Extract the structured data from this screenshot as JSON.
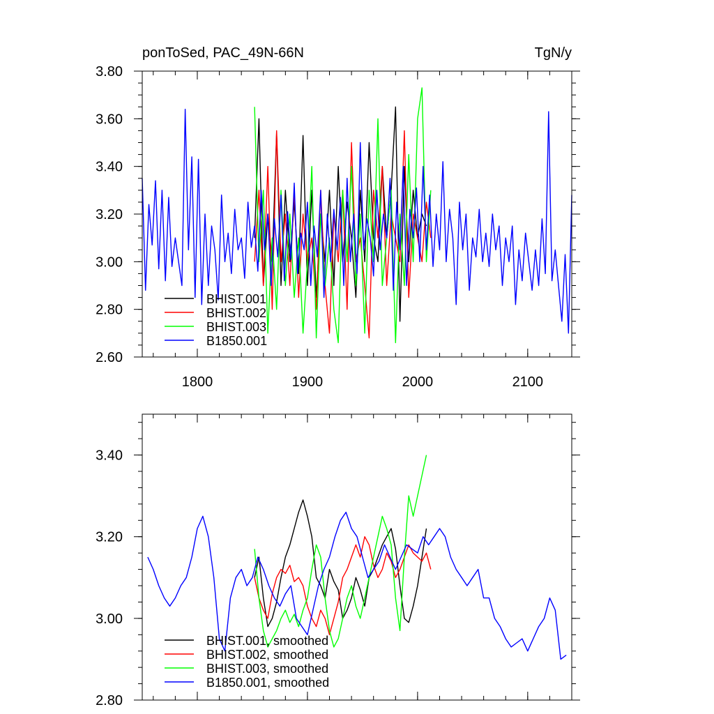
{
  "chart_data": [
    {
      "type": "line",
      "title_left": "ponToSed, PAC_49N-66N",
      "title_right": "TgN/y",
      "xlim": [
        1750,
        2140
      ],
      "ylim": [
        2.6,
        3.8
      ],
      "xticks": [
        1800,
        1900,
        2000,
        2100
      ],
      "xtick_labels": [
        "1800",
        "1900",
        "2000",
        "2100"
      ],
      "yticks": [
        2.6,
        2.8,
        3.0,
        3.2,
        3.4,
        3.6,
        3.8
      ],
      "ytick_labels": [
        "2.60",
        "2.80",
        "3.00",
        "3.20",
        "3.40",
        "3.60",
        "3.80"
      ],
      "legend_position": "bottom-left",
      "series": [
        {
          "name": "BHIST.001",
          "color": "#000000",
          "x": [
            1852,
            1856,
            1860,
            1864,
            1868,
            1872,
            1876,
            1880,
            1884,
            1888,
            1892,
            1896,
            1900,
            1904,
            1908,
            1912,
            1916,
            1920,
            1924,
            1928,
            1932,
            1936,
            1940,
            1944,
            1948,
            1952,
            1956,
            1960,
            1964,
            1968,
            1972,
            1976,
            1980,
            1984,
            1988,
            1992,
            1996,
            2000,
            2004,
            2008
          ],
          "values": [
            3.1,
            3.6,
            2.9,
            3.2,
            3.0,
            3.54,
            2.9,
            3.3,
            3.0,
            3.25,
            2.95,
            3.53,
            2.9,
            3.3,
            2.85,
            3.2,
            3.0,
            3.3,
            2.9,
            3.4,
            3.0,
            3.25,
            3.1,
            2.85,
            3.3,
            3.0,
            3.5,
            3.1,
            3.0,
            3.4,
            3.1,
            3.3,
            3.65,
            2.75,
            3.4,
            3.0,
            3.3,
            3.1,
            3.2,
            3.15
          ]
        },
        {
          "name": "BHIST.002",
          "color": "#ff0000",
          "x": [
            1852,
            1856,
            1860,
            1864,
            1868,
            1872,
            1876,
            1880,
            1884,
            1888,
            1892,
            1896,
            1900,
            1904,
            1908,
            1912,
            1916,
            1920,
            1924,
            1928,
            1932,
            1936,
            1940,
            1944,
            1948,
            1952,
            1956,
            1960,
            1964,
            1968,
            1972,
            1976,
            1980,
            1984,
            1988,
            1992,
            1996,
            2000,
            2004,
            2008,
            2012
          ],
          "values": [
            3.0,
            3.3,
            2.9,
            3.4,
            2.8,
            3.55,
            3.0,
            3.2,
            2.9,
            3.3,
            2.85,
            3.2,
            3.0,
            3.1,
            2.8,
            3.3,
            2.9,
            2.7,
            3.2,
            3.0,
            3.3,
            2.8,
            3.5,
            3.0,
            3.1,
            2.9,
            2.68,
            3.3,
            3.1,
            3.4,
            2.9,
            3.2,
            3.1,
            3.0,
            3.55,
            2.85,
            3.2,
            3.1,
            3.0,
            3.25,
            3.1
          ]
        },
        {
          "name": "BHIST.003",
          "color": "#00ff00",
          "x": [
            1852,
            1856,
            1860,
            1864,
            1868,
            1872,
            1876,
            1880,
            1884,
            1888,
            1892,
            1896,
            1900,
            1904,
            1908,
            1912,
            1916,
            1920,
            1924,
            1928,
            1932,
            1936,
            1940,
            1944,
            1948,
            1952,
            1956,
            1960,
            1964,
            1968,
            1972,
            1976,
            1980,
            1984,
            1988,
            1992,
            1996,
            2000,
            2004,
            2008,
            2012
          ],
          "values": [
            3.65,
            3.0,
            3.3,
            2.7,
            3.1,
            2.8,
            3.3,
            2.9,
            3.2,
            2.85,
            3.1,
            2.7,
            3.0,
            3.4,
            2.68,
            3.2,
            2.9,
            3.1,
            2.8,
            2.66,
            3.3,
            3.0,
            3.4,
            2.9,
            3.2,
            2.7,
            3.3,
            3.0,
            3.6,
            2.9,
            3.1,
            3.3,
            2.66,
            3.2,
            2.9,
            3.45,
            3.0,
            3.6,
            3.73,
            3.0,
            3.3
          ]
        },
        {
          "name": "B1850.001",
          "color": "#0000ff",
          "x": [
            1750,
            1753,
            1756,
            1759,
            1762,
            1765,
            1768,
            1771,
            1774,
            1777,
            1780,
            1783,
            1786,
            1789,
            1792,
            1795,
            1798,
            1801,
            1804,
            1807,
            1810,
            1813,
            1816,
            1819,
            1822,
            1825,
            1828,
            1831,
            1834,
            1837,
            1840,
            1843,
            1846,
            1849,
            1852,
            1855,
            1858,
            1861,
            1864,
            1867,
            1870,
            1873,
            1876,
            1879,
            1882,
            1885,
            1888,
            1891,
            1894,
            1897,
            1900,
            1903,
            1906,
            1909,
            1912,
            1915,
            1918,
            1921,
            1924,
            1927,
            1930,
            1933,
            1936,
            1939,
            1942,
            1945,
            1948,
            1951,
            1954,
            1957,
            1960,
            1963,
            1966,
            1969,
            1972,
            1975,
            1978,
            1981,
            1984,
            1987,
            1990,
            1993,
            1996,
            1999,
            2002,
            2005,
            2008,
            2011,
            2014,
            2017,
            2020,
            2023,
            2026,
            2029,
            2032,
            2035,
            2038,
            2041,
            2044,
            2047,
            2050,
            2053,
            2056,
            2059,
            2062,
            2065,
            2068,
            2071,
            2074,
            2077,
            2080,
            2083,
            2086,
            2089,
            2092,
            2095,
            2098,
            2101,
            2104,
            2107,
            2110,
            2113,
            2116,
            2119,
            2122,
            2125,
            2128,
            2131,
            2134,
            2137,
            2140
          ],
          "values": [
            3.35,
            2.88,
            3.24,
            3.07,
            3.34,
            2.97,
            3.3,
            2.92,
            3.27,
            2.98,
            3.1,
            3.0,
            2.9,
            3.64,
            3.05,
            3.44,
            2.85,
            3.43,
            2.82,
            3.2,
            2.9,
            3.15,
            3.05,
            2.84,
            3.28,
            3.0,
            3.12,
            2.95,
            3.22,
            3.05,
            3.1,
            2.93,
            3.25,
            3.06,
            3.15,
            2.96,
            3.3,
            3.05,
            3.2,
            2.9,
            3.18,
            3.02,
            3.28,
            2.92,
            3.21,
            3.01,
            3.33,
            2.95,
            3.12,
            3.05,
            3.25,
            2.9,
            3.15,
            3.02,
            3.3,
            2.85,
            3.2,
            3.0,
            3.22,
            3.05,
            3.27,
            2.9,
            3.35,
            3.0,
            3.2,
            2.95,
            3.5,
            3.05,
            3.18,
            3.1,
            2.94,
            3.3,
            3.05,
            3.2,
            3.1,
            3.35,
            2.88,
            3.25,
            3.05,
            3.4,
            2.9,
            3.22,
            3.1,
            3.31,
            3.0,
            3.4,
            3.05,
            3.28,
            2.98,
            3.2,
            3.05,
            3.42,
            3.0,
            3.22,
            3.1,
            2.82,
            3.25,
            3.05,
            3.2,
            2.88,
            3.1,
            3.02,
            3.22,
            3.0,
            3.12,
            2.98,
            3.2,
            3.05,
            3.15,
            2.9,
            3.1,
            3.0,
            3.15,
            2.82,
            3.05,
            2.92,
            3.12,
            3.0,
            2.88,
            3.05,
            2.9,
            3.18,
            2.95,
            3.63,
            2.92,
            3.05,
            2.9,
            2.75,
            3.03,
            2.7,
            3.28
          ]
        }
      ]
    },
    {
      "type": "line",
      "xlim": [
        1750,
        2140
      ],
      "ylim": [
        2.8,
        3.5
      ],
      "xticks": [
        1800,
        1900,
        2000,
        2100
      ],
      "yticks": [
        2.8,
        3.0,
        3.2,
        3.4
      ],
      "ytick_labels": [
        "2.80",
        "3.00",
        "3.20",
        "3.40"
      ],
      "legend_position": "bottom-left",
      "series": [
        {
          "name": "BHIST.001, smoothed",
          "color": "#000000",
          "x": [
            1852,
            1856,
            1860,
            1864,
            1868,
            1872,
            1876,
            1880,
            1884,
            1888,
            1892,
            1896,
            1900,
            1904,
            1908,
            1912,
            1916,
            1920,
            1924,
            1928,
            1932,
            1936,
            1940,
            1944,
            1948,
            1952,
            1956,
            1960,
            1964,
            1968,
            1972,
            1976,
            1980,
            1984,
            1988,
            1992,
            1996,
            2000,
            2004,
            2008
          ],
          "values": [
            3.1,
            3.15,
            3.05,
            2.98,
            3.0,
            3.04,
            3.1,
            3.15,
            3.18,
            3.22,
            3.26,
            3.29,
            3.25,
            3.2,
            3.1,
            3.08,
            3.05,
            3.12,
            3.09,
            3.07,
            3.0,
            3.02,
            3.05,
            3.1,
            3.07,
            3.03,
            3.1,
            3.12,
            3.15,
            3.18,
            3.2,
            3.22,
            3.17,
            3.08,
            3.0,
            2.99,
            3.03,
            3.08,
            3.15,
            3.22
          ]
        },
        {
          "name": "BHIST.002, smoothed",
          "color": "#ff0000",
          "x": [
            1852,
            1856,
            1860,
            1864,
            1868,
            1872,
            1876,
            1880,
            1884,
            1888,
            1892,
            1896,
            1900,
            1904,
            1908,
            1912,
            1916,
            1920,
            1924,
            1928,
            1932,
            1936,
            1940,
            1944,
            1948,
            1952,
            1956,
            1960,
            1964,
            1968,
            1972,
            1976,
            1980,
            1984,
            1988,
            1992,
            1996,
            2000,
            2004,
            2008,
            2012
          ],
          "values": [
            3.1,
            3.05,
            3.02,
            3.0,
            3.06,
            3.1,
            3.12,
            3.11,
            3.13,
            3.09,
            3.1,
            3.08,
            3.03,
            3.0,
            2.98,
            3.02,
            3.0,
            2.96,
            3.0,
            3.04,
            3.1,
            3.12,
            3.15,
            3.18,
            3.15,
            3.2,
            3.18,
            3.13,
            3.1,
            3.12,
            3.16,
            3.14,
            3.1,
            3.12,
            3.15,
            3.18,
            3.16,
            3.15,
            3.14,
            3.16,
            3.12
          ]
        },
        {
          "name": "BHIST.003, smoothed",
          "color": "#00ff00",
          "x": [
            1852,
            1856,
            1860,
            1864,
            1868,
            1872,
            1876,
            1880,
            1884,
            1888,
            1892,
            1896,
            1900,
            1904,
            1908,
            1912,
            1916,
            1920,
            1924,
            1928,
            1932,
            1936,
            1940,
            1944,
            1948,
            1952,
            1956,
            1960,
            1964,
            1968,
            1972,
            1976,
            1980,
            1984,
            1988,
            1992,
            1996,
            2000,
            2004,
            2008
          ],
          "values": [
            3.17,
            3.05,
            2.97,
            2.93,
            2.95,
            2.97,
            3.0,
            3.02,
            2.99,
            3.01,
            2.98,
            3.02,
            3.05,
            3.12,
            3.18,
            3.15,
            3.05,
            2.97,
            2.93,
            2.95,
            3.0,
            3.05,
            3.08,
            3.03,
            3.0,
            3.05,
            3.1,
            3.15,
            3.2,
            3.25,
            3.22,
            3.18,
            3.05,
            2.97,
            3.15,
            3.3,
            3.25,
            3.3,
            3.35,
            3.4
          ]
        },
        {
          "name": "B1850.001, smoothed",
          "color": "#0000ff",
          "x": [
            1755,
            1760,
            1765,
            1770,
            1775,
            1780,
            1785,
            1790,
            1795,
            1800,
            1805,
            1810,
            1815,
            1820,
            1825,
            1830,
            1835,
            1840,
            1845,
            1850,
            1855,
            1860,
            1865,
            1870,
            1875,
            1880,
            1885,
            1890,
            1895,
            1900,
            1905,
            1910,
            1915,
            1920,
            1925,
            1930,
            1935,
            1940,
            1945,
            1950,
            1955,
            1960,
            1965,
            1970,
            1975,
            1980,
            1985,
            1990,
            1995,
            2000,
            2005,
            2010,
            2015,
            2020,
            2025,
            2030,
            2035,
            2040,
            2045,
            2050,
            2055,
            2060,
            2065,
            2070,
            2075,
            2080,
            2085,
            2090,
            2095,
            2100,
            2105,
            2110,
            2115,
            2120,
            2125,
            2130,
            2135
          ],
          "values": [
            3.15,
            3.12,
            3.08,
            3.05,
            3.03,
            3.05,
            3.08,
            3.1,
            3.15,
            3.22,
            3.25,
            3.2,
            3.1,
            2.95,
            2.92,
            3.05,
            3.1,
            3.12,
            3.08,
            3.1,
            3.15,
            3.12,
            3.08,
            3.05,
            3.03,
            3.06,
            3.08,
            3.0,
            2.98,
            2.96,
            3.02,
            3.08,
            3.12,
            3.15,
            3.2,
            3.24,
            3.26,
            3.22,
            3.2,
            3.15,
            3.1,
            3.12,
            3.14,
            3.18,
            3.15,
            3.12,
            3.15,
            3.18,
            3.17,
            3.16,
            3.2,
            3.18,
            3.2,
            3.22,
            3.2,
            3.15,
            3.12,
            3.1,
            3.08,
            3.1,
            3.12,
            3.05,
            3.05,
            3.0,
            2.98,
            2.95,
            2.93,
            2.94,
            2.95,
            2.92,
            2.95,
            2.98,
            3.0,
            3.05,
            3.02,
            2.9,
            2.91
          ]
        }
      ]
    }
  ]
}
